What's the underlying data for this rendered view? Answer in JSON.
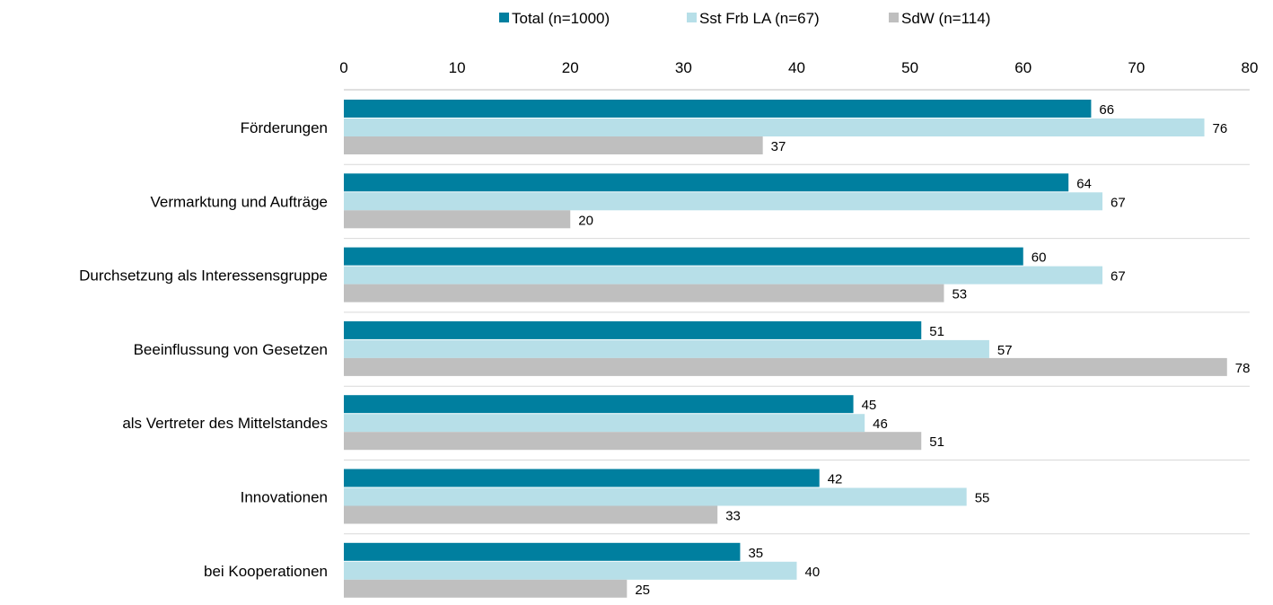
{
  "chart_data": {
    "type": "bar",
    "orientation": "horizontal",
    "categories": [
      "Förderungen",
      "Vermarktung und Aufträge",
      "Durchsetzung als Interessensgruppe",
      "Beeinflussung von Gesetzen",
      "als Vertreter des Mittelstandes",
      "Innovationen",
      "bei Kooperationen"
    ],
    "series": [
      {
        "name": "Total (n=1000)",
        "color": "#007f9f",
        "values": [
          66,
          64,
          60,
          51,
          45,
          42,
          35
        ]
      },
      {
        "name": "Sst Frb LA (n=67)",
        "color": "#b7dfe8",
        "values": [
          76,
          67,
          67,
          57,
          46,
          55,
          40
        ]
      },
      {
        "name": "SdW (n=114)",
        "color": "#bfbfbf",
        "values": [
          37,
          20,
          53,
          78,
          51,
          33,
          25
        ]
      }
    ],
    "xlim": [
      0,
      80
    ],
    "xticks": [
      0,
      10,
      20,
      30,
      40,
      50,
      60,
      70,
      80
    ],
    "axis_position": "top",
    "legend_position": "top",
    "data_labels": true,
    "grid": "horizontal separators between categories",
    "title": "",
    "xlabel": "",
    "ylabel": ""
  }
}
